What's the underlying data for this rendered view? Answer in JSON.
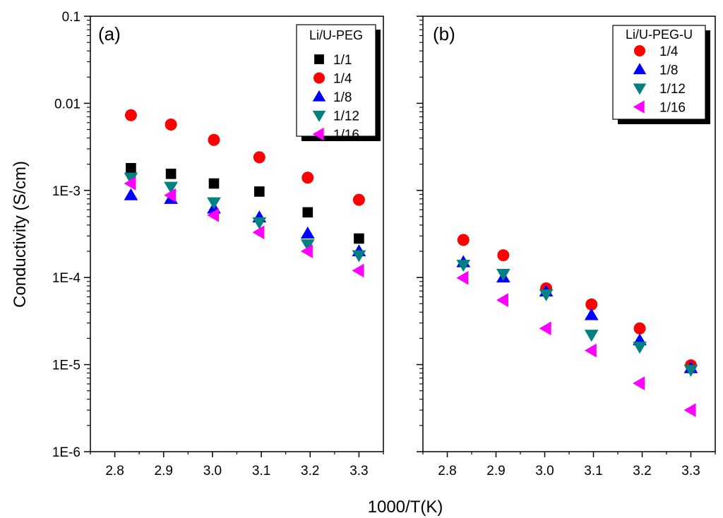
{
  "figure": {
    "ylabel": "Conductivity (S/cm)",
    "xlabel": "1000/T(K)"
  },
  "chart_data": [
    {
      "type": "scatter",
      "panel_label": "(a)",
      "y_scale": "log",
      "ylim": [
        1e-06,
        0.1
      ],
      "xlim": [
        2.75,
        3.35
      ],
      "x_ticks": [
        2.8,
        2.9,
        3.0,
        3.1,
        3.2,
        3.3
      ],
      "x_tick_labels": [
        "2.8",
        "2.9",
        "3.0",
        "3.1",
        "3.2",
        "3.3"
      ],
      "y_ticks": [
        0.1,
        0.01,
        0.001,
        0.0001,
        1e-05,
        1e-06
      ],
      "y_tick_labels": [
        "0.1",
        "0.01",
        "1E-3",
        "1E-4",
        "1E-5",
        "1E-6"
      ],
      "legend": {
        "title": "Li/U-PEG",
        "position": "top-right"
      },
      "series": [
        {
          "name": "1/1",
          "marker": "square",
          "color": "#000000",
          "x": [
            2.833,
            2.915,
            3.003,
            3.096,
            3.195,
            3.3
          ],
          "y": [
            0.0018,
            0.00155,
            0.0012,
            0.00097,
            0.00056,
            0.00028
          ]
        },
        {
          "name": "1/4",
          "marker": "circle",
          "color": "#ff0000",
          "x": [
            2.833,
            2.915,
            3.003,
            3.096,
            3.195,
            3.3
          ],
          "y": [
            0.0073,
            0.0057,
            0.0038,
            0.0024,
            0.0014,
            0.00078
          ]
        },
        {
          "name": "1/8",
          "marker": "triangle-up",
          "color": "#0000ff",
          "x": [
            2.833,
            2.915,
            3.003,
            3.096,
            3.195,
            3.3
          ],
          "y": [
            0.00088,
            0.0008,
            0.00062,
            0.00049,
            0.00032,
            0.0002
          ]
        },
        {
          "name": "1/12",
          "marker": "triangle-down",
          "color": "#008080",
          "x": [
            2.833,
            2.915,
            3.003,
            3.096,
            3.195,
            3.3
          ],
          "y": [
            0.0014,
            0.0011,
            0.00073,
            0.00043,
            0.00024,
            0.00018
          ]
        },
        {
          "name": "1/16",
          "marker": "triangle-left",
          "color": "#ff00ff",
          "x": [
            2.833,
            2.915,
            3.003,
            3.096,
            3.195,
            3.3
          ],
          "y": [
            0.0012,
            0.00088,
            0.00052,
            0.00033,
            0.0002,
            0.00012
          ]
        }
      ]
    },
    {
      "type": "scatter",
      "panel_label": "(b)",
      "y_scale": "log",
      "ylim": [
        1e-06,
        0.1
      ],
      "xlim": [
        2.75,
        3.35
      ],
      "x_ticks": [
        2.8,
        2.9,
        3.0,
        3.1,
        3.2,
        3.3
      ],
      "x_tick_labels": [
        "2.8",
        "2.9",
        "3.0",
        "3.1",
        "3.2",
        "3.3"
      ],
      "y_ticks": [
        0.1,
        0.01,
        0.001,
        0.0001,
        1e-05,
        1e-06
      ],
      "legend": {
        "title": "Li/U-PEG-U",
        "position": "top-right"
      },
      "series": [
        {
          "name": "1/4",
          "marker": "circle",
          "color": "#ff0000",
          "x": [
            2.833,
            2.915,
            3.003,
            3.096,
            3.195,
            3.3
          ],
          "y": [
            0.00027,
            0.00018,
            7.5e-05,
            4.9e-05,
            2.6e-05,
            9.8e-06
          ]
        },
        {
          "name": "1/8",
          "marker": "triangle-up",
          "color": "#0000ff",
          "x": [
            2.833,
            2.915,
            3.003,
            3.096,
            3.195,
            3.3
          ],
          "y": [
            0.00015,
            0.0001,
            6.9e-05,
            3.7e-05,
            1.9e-05,
            9.1e-06
          ]
        },
        {
          "name": "1/12",
          "marker": "triangle-down",
          "color": "#008080",
          "x": [
            2.833,
            2.915,
            3.003,
            3.096,
            3.195,
            3.3
          ],
          "y": [
            0.00014,
            0.00011,
            6.4e-05,
            2.2e-05,
            1.6e-05,
            8.7e-06
          ]
        },
        {
          "name": "1/16",
          "marker": "triangle-left",
          "color": "#ff00ff",
          "x": [
            2.833,
            2.915,
            3.003,
            3.096,
            3.195,
            3.3
          ],
          "y": [
            9.9e-05,
            5.5e-05,
            2.6e-05,
            1.45e-05,
            6.1e-06,
            3e-06
          ]
        }
      ]
    }
  ]
}
